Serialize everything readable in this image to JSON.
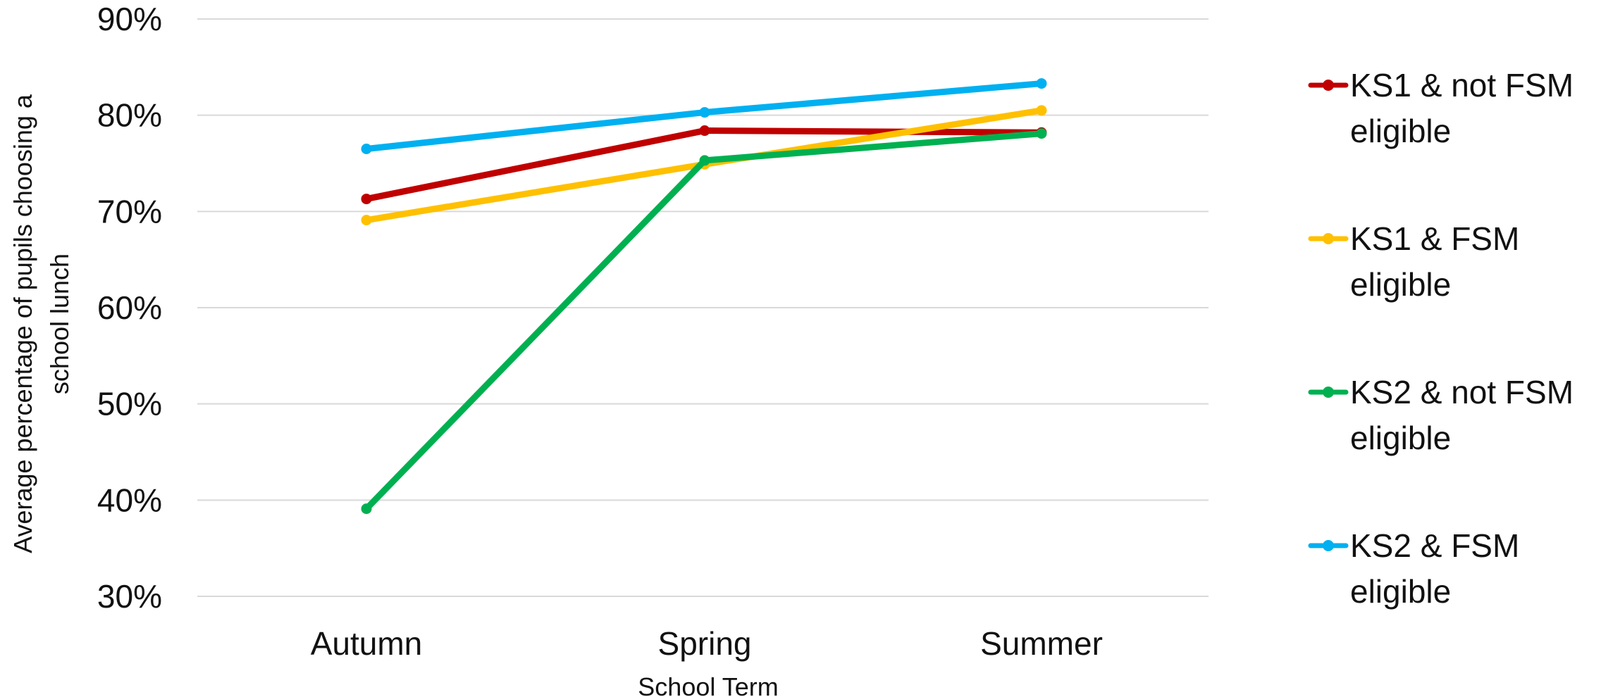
{
  "chart_data": {
    "type": "line",
    "title": "",
    "xlabel": "School Term",
    "ylabel": "Average percentage of pupils choosing a school lunch",
    "ylabel_lines": [
      "Average percentage of pupils choosing a",
      "school lunch"
    ],
    "categories": [
      "Autumn",
      "Spring",
      "Summer"
    ],
    "ylim": [
      30,
      90
    ],
    "yticks": [
      90,
      80,
      70,
      60,
      50,
      40,
      30
    ],
    "ytick_labels": [
      "90%",
      "80%",
      "70%",
      "60%",
      "50%",
      "40%",
      "30%"
    ],
    "grid": true,
    "legend_position": "right",
    "series": [
      {
        "name": "KS1 & not FSM eligible",
        "name_lines": [
          "KS1 & not FSM",
          "eligible"
        ],
        "color": "#c00000",
        "values": [
          71.3,
          78.4,
          78.2
        ]
      },
      {
        "name": "KS1 & FSM eligible",
        "name_lines": [
          "KS1 & FSM",
          "eligible"
        ],
        "color": "#ffc000",
        "values": [
          69.1,
          74.9,
          80.5
        ]
      },
      {
        "name": "KS2 & not FSM eligible",
        "name_lines": [
          "KS2 & not FSM",
          "eligible"
        ],
        "color": "#00b050",
        "values": [
          39.1,
          75.3,
          78.1
        ]
      },
      {
        "name": "KS2 & FSM eligible",
        "name_lines": [
          "KS2 & FSM",
          "eligible"
        ],
        "color": "#00b0f0",
        "values": [
          76.5,
          80.3,
          83.3
        ]
      }
    ]
  }
}
